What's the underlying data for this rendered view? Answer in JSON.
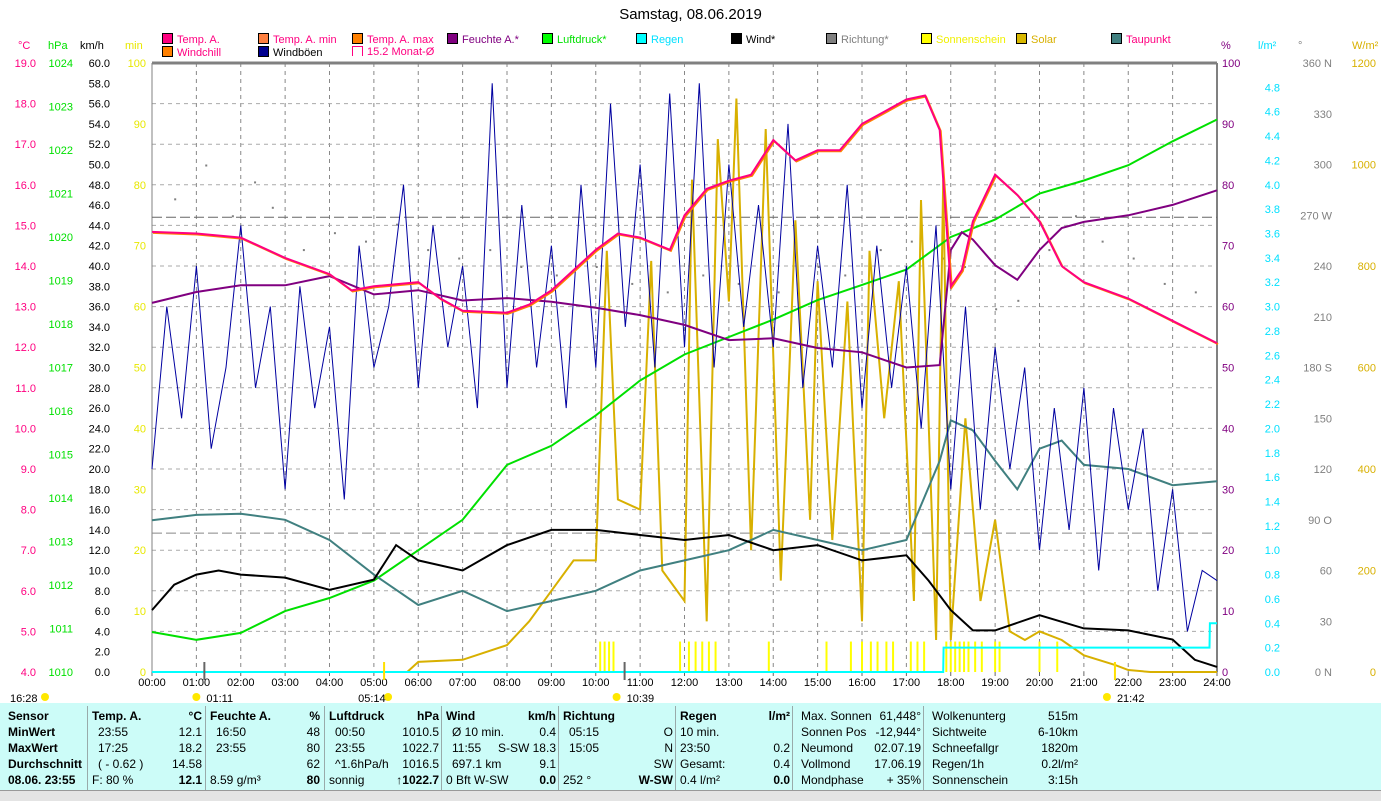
{
  "title": "Samstag, 08.06.2019",
  "legend": [
    {
      "label": "Temp. A.",
      "box": "#ff0080",
      "text": "#ff0080"
    },
    {
      "label": "Temp. A. min",
      "box": "#ff8040",
      "text": "#ff0080"
    },
    {
      "label": "Temp. A. max",
      "box": "#ff8000",
      "text": "#ff0080"
    },
    {
      "label": "Feuchte A.*",
      "box": "#800080",
      "text": "#800080"
    },
    {
      "label": "Luftdruck*",
      "box": "#00ff00",
      "text": "#00e000"
    },
    {
      "label": "Regen",
      "box": "#00ffff",
      "text": "#00e0ff"
    },
    {
      "label": "Wind*",
      "box": "#000000",
      "text": "#000000"
    },
    {
      "label": "Richtung*",
      "box": "#808080",
      "text": "#808080"
    },
    {
      "label": "Sonnenschein",
      "box": "#ffff00",
      "text": "#f0f000"
    },
    {
      "label": "Solar",
      "box": "#d8b800",
      "text": "#d8b000"
    },
    {
      "label": "Taupunkt",
      "box": "#408080",
      "text": "#ff0080"
    },
    {
      "label": "Windchill",
      "box": "#ff8000",
      "text": "#ff0080"
    },
    {
      "label": "Windböen",
      "box": "#000090",
      "text": "#000000"
    },
    {
      "label": "15.2 Monat-Ø",
      "box": "#ffffff",
      "text": "#ff0080"
    }
  ],
  "axis_units": {
    "temp": "°C",
    "pressure": "hPa",
    "wind": "km/h",
    "sun": "min",
    "humidity": "%",
    "rain": "l/m²",
    "dir": "°",
    "solar": "W/m²"
  },
  "chart_data": {
    "type": "line",
    "title": "Samstag, 08.06.2019",
    "x_range_hours": [
      0,
      24
    ],
    "x_ticks": [
      "00:00",
      "01:00",
      "02:00",
      "03:00",
      "04:00",
      "05:00",
      "06:00",
      "07:00",
      "08:00",
      "09:00",
      "10:00",
      "11:00",
      "12:00",
      "13:00",
      "14:00",
      "15:00",
      "16:00",
      "17:00",
      "18:00",
      "19:00",
      "20:00",
      "21:00",
      "22:00",
      "23:00",
      "24:00"
    ],
    "axes": {
      "temp": {
        "range": [
          4,
          19
        ],
        "ticks": [
          "19.0",
          "18.0",
          "17.0",
          "16.0",
          "15.0",
          "14.0",
          "13.0",
          "12.0",
          "11.0",
          "10.0",
          "9.0",
          "8.0",
          "7.0",
          "6.0",
          "5.0",
          "4.0"
        ]
      },
      "pressure": {
        "range": [
          1010,
          1024
        ],
        "ticks": [
          "1024",
          "1023",
          "1022",
          "1021",
          "1020",
          "1019",
          "1018",
          "1017",
          "1016",
          "1015",
          "1014",
          "1013",
          "1012",
          "1011",
          "1010"
        ]
      },
      "wind": {
        "range": [
          0,
          60
        ],
        "ticks": [
          "60.0",
          "58.0",
          "56.0",
          "54.0",
          "52.0",
          "50.0",
          "48.0",
          "46.0",
          "44.0",
          "42.0",
          "40.0",
          "38.0",
          "36.0",
          "34.0",
          "32.0",
          "30.0",
          "28.0",
          "26.0",
          "24.0",
          "22.0",
          "20.0",
          "18.0",
          "16.0",
          "14.0",
          "12.0",
          "10.0",
          "8.0",
          "6.0",
          "4.0",
          "2.0",
          "0.0"
        ]
      },
      "sun": {
        "range": [
          0,
          100
        ],
        "ticks": [
          "100",
          "90",
          "80",
          "70",
          "60",
          "50",
          "40",
          "30",
          "20",
          "10",
          "0"
        ]
      },
      "humidity": {
        "range": [
          0,
          100
        ],
        "ticks": [
          "100",
          "90",
          "80",
          "70",
          "60",
          "50",
          "40",
          "30",
          "20",
          "10",
          "0"
        ]
      },
      "rain": {
        "range": [
          0,
          5
        ],
        "ticks": [
          "4.8",
          "4.6",
          "4.4",
          "4.2",
          "4.0",
          "3.8",
          "3.6",
          "3.4",
          "3.2",
          "3.0",
          "2.8",
          "2.6",
          "2.4",
          "2.2",
          "2.0",
          "1.8",
          "1.6",
          "1.4",
          "1.2",
          "1.0",
          "0.8",
          "0.6",
          "0.4",
          "0.2",
          "0.0"
        ]
      },
      "dir": {
        "range": [
          0,
          360
        ],
        "ticks": [
          "360 N",
          "330",
          "300",
          "270 W",
          "240",
          "210",
          "180 S",
          "150",
          "120",
          "90 O",
          "60",
          "30",
          "0 N"
        ]
      },
      "solar": {
        "range": [
          0,
          1200
        ],
        "ticks": [
          "1200",
          "1000",
          "800",
          "600",
          "400",
          "200",
          "0"
        ]
      }
    },
    "month_avg_temp": 15.2,
    "ref_line_temp_2": 7.42,
    "series": [
      {
        "name": "Temp. A.",
        "axis": "temp",
        "color": "#ff0080",
        "x": [
          0,
          1,
          2,
          3,
          4,
          4.5,
          5,
          6,
          6.5,
          7,
          8,
          8.5,
          9,
          10,
          10.5,
          11,
          11.67,
          12,
          12.5,
          13,
          13.5,
          14,
          14.5,
          15,
          15.5,
          16,
          16.5,
          17,
          17.42,
          17.75,
          18,
          18.25,
          18.5,
          19,
          19.5,
          20,
          20.5,
          21,
          22,
          23,
          24
        ],
        "y": [
          14.84,
          14.8,
          14.7,
          14.2,
          13.8,
          13.4,
          13.5,
          13.6,
          13.2,
          12.9,
          12.85,
          13.05,
          13.4,
          14.4,
          14.8,
          14.7,
          14.4,
          15.25,
          15.9,
          16.1,
          16.25,
          17.1,
          16.6,
          16.85,
          16.85,
          17.5,
          17.8,
          18.1,
          18.2,
          17.35,
          13.5,
          13.9,
          15.1,
          16.25,
          15.75,
          15.1,
          14.0,
          13.6,
          13.2,
          12.65,
          12.1
        ]
      },
      {
        "name": "Feuchte A.*",
        "axis": "humidity",
        "color": "#800080",
        "x": [
          0,
          1,
          2,
          3,
          4,
          5,
          6,
          7,
          8,
          9,
          10,
          11,
          12,
          13,
          14,
          15,
          16,
          17,
          17.75,
          18,
          18.25,
          18.5,
          19,
          19.5,
          20,
          20.5,
          21,
          22,
          23,
          24
        ],
        "y": [
          60.6,
          62.4,
          63.5,
          63.5,
          65,
          62,
          62.7,
          61,
          61.4,
          60.8,
          59.8,
          58.6,
          57,
          54.5,
          54.8,
          53.2,
          52.5,
          50,
          50.4,
          69.3,
          72.2,
          71,
          66.8,
          64.4,
          69.3,
          72.9,
          73.9,
          75,
          76.7,
          79.1
        ]
      },
      {
        "name": "Luftdruck*",
        "axis": "pressure",
        "color": "#00e000",
        "x": [
          0,
          1,
          2,
          3,
          4,
          5,
          6,
          7,
          8,
          9,
          10,
          11,
          12,
          13,
          14,
          15,
          16,
          17,
          18,
          19,
          20,
          21,
          22,
          23,
          24
        ],
        "y": [
          1010.92,
          1010.74,
          1010.9,
          1011.4,
          1011.7,
          1012.1,
          1012.8,
          1013.5,
          1014.76,
          1015.2,
          1015.9,
          1016.7,
          1017.3,
          1017.7,
          1018.1,
          1018.55,
          1018.9,
          1019.25,
          1020,
          1020.4,
          1021,
          1021.3,
          1021.65,
          1022.2,
          1022.7
        ]
      },
      {
        "name": "Taupunkt",
        "axis": "temp",
        "color": "#408080",
        "x": [
          0,
          1,
          2,
          3,
          4,
          5,
          6,
          7,
          8,
          9,
          10,
          11,
          12,
          13,
          14,
          15,
          16,
          17,
          17.75,
          18,
          18.5,
          19,
          19.5,
          20,
          20.5,
          21,
          22,
          23,
          24
        ],
        "y": [
          7.74,
          7.87,
          7.9,
          7.75,
          7.25,
          6.4,
          5.65,
          6,
          5.5,
          5.75,
          6,
          6.5,
          6.75,
          7,
          7.5,
          7.25,
          7,
          7.25,
          9.2,
          10.2,
          9.95,
          9.2,
          8.5,
          9.5,
          9.7,
          9.1,
          9.0,
          8.6,
          8.7
        ]
      },
      {
        "name": "Windböen",
        "axis": "wind",
        "color": "#0000a0",
        "step_minutes": 20,
        "y": [
          20,
          36,
          25,
          40,
          22,
          30,
          44,
          28,
          36,
          18,
          38,
          26,
          34,
          17,
          42,
          30,
          36,
          48,
          28,
          44,
          32,
          40,
          26,
          58,
          28,
          46,
          30,
          42,
          26,
          48,
          30,
          56,
          34,
          50,
          30,
          57,
          32,
          58,
          30,
          50,
          34,
          46,
          32,
          54,
          28,
          42,
          30,
          48,
          26,
          42,
          28,
          40,
          24,
          44,
          18,
          36,
          16,
          32,
          20,
          30,
          12,
          26,
          14,
          28,
          10,
          26,
          16,
          24,
          8,
          18,
          4,
          10,
          9
        ]
      },
      {
        "name": "Wind*",
        "axis": "wind",
        "color": "#000000",
        "x": [
          0,
          0.5,
          1,
          1.5,
          2,
          3,
          4,
          5,
          5.5,
          6,
          7,
          8,
          9,
          10,
          11,
          12,
          13,
          14,
          15,
          16,
          17,
          17.5,
          18,
          18.5,
          19,
          20,
          21,
          22,
          23,
          23.5,
          24
        ],
        "y": [
          6.1,
          8.6,
          9.6,
          10,
          9.6,
          9.3,
          8.1,
          9.1,
          12.5,
          11,
          10,
          12.5,
          14,
          14,
          13.5,
          13,
          13.5,
          12,
          12.5,
          11,
          11.5,
          9,
          6.1,
          4.1,
          4.1,
          5.6,
          4.3,
          4.1,
          3.2,
          1.2,
          0.5
        ]
      },
      {
        "name": "Solar",
        "axis": "solar",
        "color": "#d8b000",
        "x": [
          0,
          5.75,
          6,
          7,
          8,
          8.5,
          9,
          9.5,
          10,
          10.25,
          10.5,
          11,
          11.25,
          11.5,
          12,
          12.17,
          12.5,
          12.75,
          13,
          13.17,
          13.5,
          13.83,
          14.17,
          14.5,
          14.83,
          15,
          15.33,
          15.67,
          16,
          16.17,
          16.5,
          16.83,
          17.17,
          17.33,
          17.67,
          17.83,
          18,
          18.33,
          18.67,
          19,
          19.33,
          19.67,
          20,
          20.5,
          21,
          21.7,
          22,
          22.5,
          24
        ],
        "y": [
          0,
          0,
          20,
          24,
          53,
          100,
          160,
          220,
          220,
          830,
          340,
          320,
          810,
          200,
          140,
          970,
          100,
          1050,
          730,
          1130,
          240,
          1070,
          180,
          890,
          300,
          770,
          260,
          730,
          100,
          830,
          500,
          770,
          140,
          930,
          63,
          970,
          63,
          500,
          140,
          300,
          80,
          63,
          80,
          63,
          33,
          14,
          4,
          0,
          0
        ]
      },
      {
        "name": "Regen",
        "axis": "rain",
        "color": "#00ffff",
        "x": [
          0,
          17.83,
          17.84,
          23.83,
          23.84,
          24
        ],
        "y": [
          0,
          0,
          0.2,
          0.2,
          0.4,
          0.4
        ]
      }
    ],
    "direction_points": {
      "axis": "dir",
      "color": "#808080",
      "x": [
        0.5,
        1.2,
        1.8,
        2.3,
        2.7,
        3.4,
        4.1,
        4.8,
        5.5,
        6.2,
        6.9,
        7.6,
        8.3,
        9.1,
        10,
        10.8,
        11.6,
        12.4,
        13.2,
        14.1,
        15,
        15.6,
        16.4,
        17.1,
        17.8,
        18.3,
        19,
        19.5,
        20.2,
        20.8,
        21.4,
        22.1,
        22.8,
        23.5
      ],
      "y": [
        280,
        300,
        270,
        290,
        275,
        250,
        260,
        255,
        265,
        250,
        245,
        250,
        240,
        235,
        240,
        230,
        225,
        235,
        230,
        225,
        240,
        235,
        250,
        255,
        245,
        240,
        215,
        220,
        250,
        270,
        255,
        245,
        230,
        225
      ]
    },
    "sunshine_bars": {
      "axis": "sun",
      "color": "#ffff00",
      "minutes": 5,
      "x": [
        10.1,
        10.2,
        10.3,
        10.4,
        11.9,
        12.1,
        12.25,
        12.4,
        12.55,
        12.7,
        13.9,
        15.2,
        15.75,
        16.0,
        16.2,
        16.35,
        16.55,
        16.7,
        17.1,
        17.25,
        17.4,
        17.9,
        18.0,
        18.1,
        18.2,
        18.3,
        18.4,
        18.55,
        18.7,
        19.0,
        19.1,
        20.0,
        20.4
      ]
    },
    "markers": [
      {
        "time": "16:28",
        "kind": "cloud"
      },
      {
        "time": "01:11",
        "kind": "moonset",
        "h": 1.18
      },
      {
        "time": "05:14",
        "kind": "sunrise",
        "h": 5.23
      },
      {
        "time": "10:39",
        "kind": "moonrise",
        "h": 10.65
      },
      {
        "time": "21:42",
        "kind": "sunset",
        "h": 21.7
      }
    ]
  },
  "table": {
    "sensor": [
      "Sensor",
      "MinWert",
      "MaxWert",
      "Durchschnitt",
      "08.06. 23:55"
    ],
    "columns": [
      {
        "head": [
          "Temp. A.",
          "°C"
        ],
        "rows": [
          [
            "23:55",
            "12.1"
          ],
          [
            "17:25",
            "18.2"
          ],
          [
            "( - 0.62 )",
            "14.58"
          ],
          [
            "F: 80 %",
            "12.1"
          ]
        ]
      },
      {
        "head": [
          "Feuchte A.",
          "%"
        ],
        "rows": [
          [
            "16:50",
            "48"
          ],
          [
            "23:55",
            "80"
          ],
          [
            "",
            "62"
          ],
          [
            "8.59 g/m³",
            "80"
          ]
        ]
      },
      {
        "head": [
          "Luftdruck",
          "hPa"
        ],
        "rows": [
          [
            "00:50",
            "1010.5"
          ],
          [
            "23:55",
            "1022.7"
          ],
          [
            "^1.6hPa/h",
            "1016.5"
          ],
          [
            "sonnig",
            "↑1022.7"
          ]
        ]
      },
      {
        "head": [
          "Wind",
          "km/h"
        ],
        "rows": [
          [
            "Ø 10 min.",
            "0.4"
          ],
          [
            "11:55",
            "S-SW 18.3"
          ],
          [
            "697.1 km",
            "9.1"
          ],
          [
            "0 Bft W-SW",
            "0.0"
          ]
        ]
      },
      {
        "head": [
          "Richtung",
          ""
        ],
        "rows": [
          [
            "05:15",
            "O"
          ],
          [
            "15:05",
            "N"
          ],
          [
            "",
            "SW"
          ],
          [
            "252 °",
            "W-SW"
          ]
        ]
      },
      {
        "head": [
          "Regen",
          "l/m²"
        ],
        "rows": [
          [
            "10 min.",
            ""
          ],
          [
            "23:50",
            "0.2"
          ],
          [
            "Gesamt:",
            "0.4"
          ],
          [
            "0.4 l/m²",
            "0.0"
          ]
        ]
      }
    ],
    "astro": [
      [
        "Max. Sonnen",
        "61,448°"
      ],
      [
        "Sonnen Pos",
        "-12,944°"
      ],
      [
        "Neumond",
        "02.07.19"
      ],
      [
        "Vollmond",
        "17.06.19"
      ],
      [
        "Mondphase",
        "+ 35%"
      ]
    ],
    "misc": [
      [
        "Wolkenunterg",
        "515m"
      ],
      [
        "Sichtweite",
        "6-10km"
      ],
      [
        "Schneefallgr",
        "1820m"
      ],
      [
        "Regen/1h",
        "0.2l/m²"
      ],
      [
        "Sonnenschein",
        "3:15h"
      ]
    ]
  }
}
